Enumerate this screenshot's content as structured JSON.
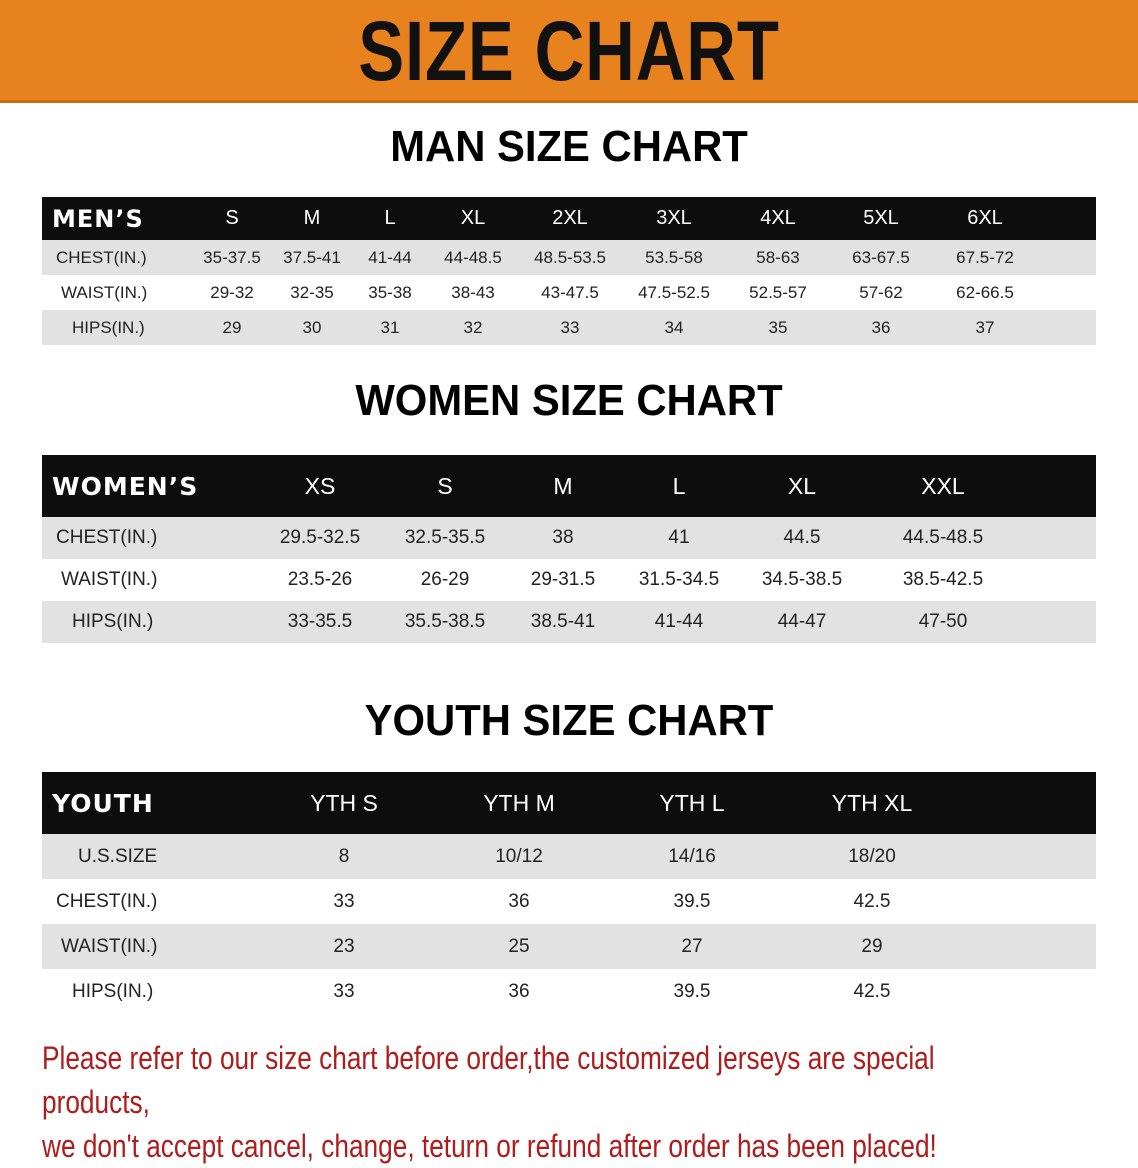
{
  "banner": {
    "title": "SIZE CHART",
    "color": "#e8821e"
  },
  "men": {
    "title": "MAN SIZE CHART",
    "header": [
      "MEN’S",
      "S",
      "M",
      "L",
      "XL",
      "2XL",
      "3XL",
      "4XL",
      "5XL",
      "6XL"
    ],
    "rows": [
      [
        "CHEST(IN.)",
        "35-37.5",
        "37.5-41",
        "41-44",
        "44-48.5",
        "48.5-53.5",
        "53.5-58",
        "58-63",
        "63-67.5",
        "67.5-72"
      ],
      [
        "WAIST(IN.)",
        "29-32",
        "32-35",
        "35-38",
        "38-43",
        "43-47.5",
        "47.5-52.5",
        "52.5-57",
        "57-62",
        "62-66.5"
      ],
      [
        "HIPS(IN.)",
        "29",
        "30",
        "31",
        "32",
        "33",
        "34",
        "35",
        "36",
        "37"
      ]
    ]
  },
  "women": {
    "title": "WOMEN SIZE CHART",
    "header": [
      "WOMEN’S",
      "XS",
      "S",
      "M",
      "L",
      "XL",
      "XXL"
    ],
    "rows": [
      [
        "CHEST(IN.)",
        "29.5-32.5",
        "32.5-35.5",
        "38",
        "41",
        "44.5",
        "44.5-48.5"
      ],
      [
        "WAIST(IN.)",
        "23.5-26",
        "26-29",
        "29-31.5",
        "31.5-34.5",
        "34.5-38.5",
        "38.5-42.5"
      ],
      [
        "HIPS(IN.)",
        "33-35.5",
        "35.5-38.5",
        "38.5-41",
        "41-44",
        "44-47",
        "47-50"
      ]
    ]
  },
  "youth": {
    "title": "YOUTH SIZE CHART",
    "header": [
      "YOUTH",
      "YTH S",
      "YTH M",
      "YTH L",
      "YTH XL"
    ],
    "rows": [
      [
        "U.S.SIZE",
        "8",
        "10/12",
        "14/16",
        "18/20"
      ],
      [
        "CHEST(IN.)",
        "33",
        "36",
        "39.5",
        "42.5"
      ],
      [
        "WAIST(IN.)",
        "23",
        "25",
        "27",
        "29"
      ],
      [
        "HIPS(IN.)",
        "33",
        "36",
        "39.5",
        "42.5"
      ]
    ]
  },
  "notice": {
    "line1": "Please refer to our size chart before order,the customized jerseys are special products,",
    "line2": "we don't accept cancel, change, teturn or refund after order has been placed!",
    "color": "#b01c1c"
  }
}
